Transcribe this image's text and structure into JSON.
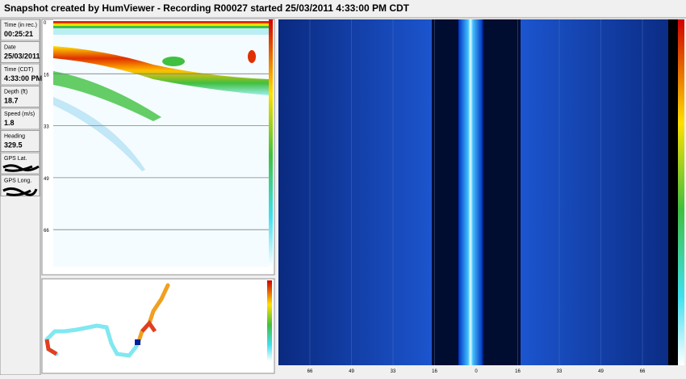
{
  "header": {
    "title": "Snapshot created by HumViewer - Recording R00027 started 25/03/2011 4:33:00 PM CDT"
  },
  "fields": [
    {
      "label": "Time (in rec.)",
      "value": "00:25:21"
    },
    {
      "label": "Date",
      "value": "25/03/2011"
    },
    {
      "label": "Time (CDT)",
      "value": "4:33:00 PM"
    },
    {
      "label": "Depth (ft)",
      "value": "18.7"
    },
    {
      "label": "Speed (m/s)",
      "value": "1.8"
    },
    {
      "label": "Heading",
      "value": "329.5"
    },
    {
      "label": "GPS Lat."
    },
    {
      "label": "GPS Long."
    }
  ],
  "sonar": {
    "depth_ticks": [
      "0",
      "16",
      "33",
      "49",
      "66"
    ]
  },
  "side_scan": {
    "range_ticks": [
      "66",
      "49",
      "33",
      "16",
      "0",
      "16",
      "33",
      "49",
      "66"
    ]
  }
}
